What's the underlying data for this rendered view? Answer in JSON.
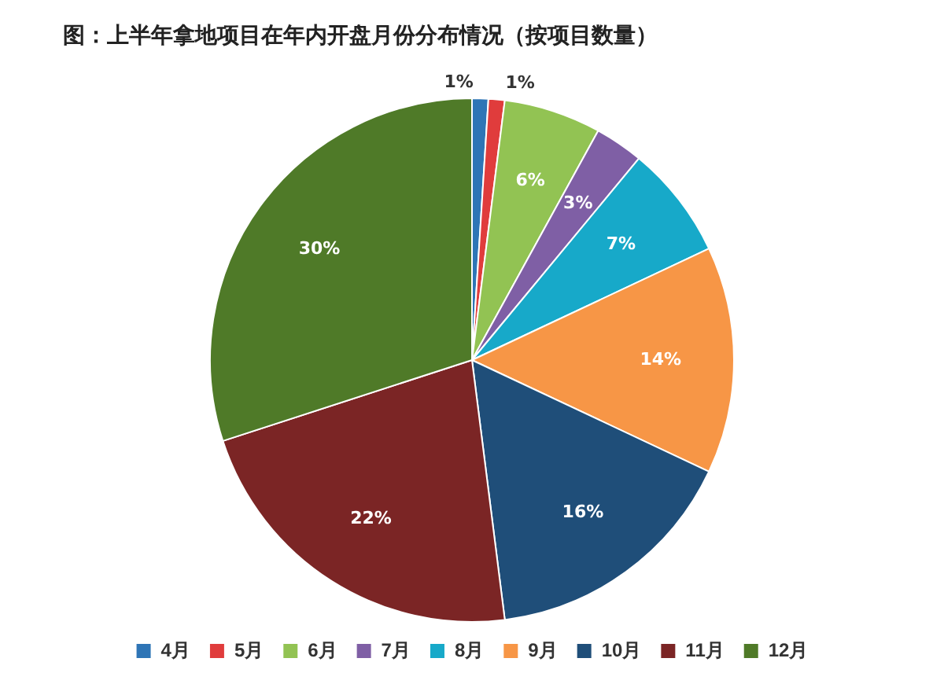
{
  "chart_data": {
    "type": "pie",
    "title": "图：上半年拿地项目在年内开盘月份分布情况（按项目数量）",
    "categories": [
      "4月",
      "5月",
      "6月",
      "7月",
      "8月",
      "9月",
      "10月",
      "11月",
      "12月"
    ],
    "values": [
      1,
      1,
      6,
      3,
      7,
      14,
      16,
      22,
      30
    ],
    "colors": [
      "#2e75b6",
      "#e03c3c",
      "#92c353",
      "#7f5fa5",
      "#17a9c9",
      "#f79646",
      "#1f4e79",
      "#7b2525",
      "#4f7a28"
    ],
    "value_labels": [
      "1%",
      "1%",
      "6%",
      "3%",
      "7%",
      "14%",
      "16%",
      "22%",
      "30%"
    ],
    "legend": "bottom"
  }
}
